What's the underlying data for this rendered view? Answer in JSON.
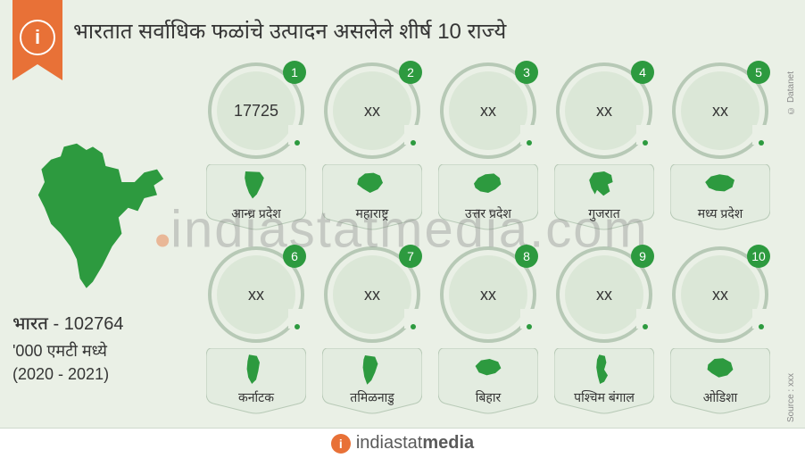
{
  "colors": {
    "bg": "#eaf0e6",
    "accent": "#e87137",
    "green": "#2d9a3f",
    "text": "#353535",
    "ring_border": "#b7c9b6",
    "ring_inner": "#dbe7d7",
    "shelf_fill": "#e3ece0",
    "shelf_stroke": "#b7c9b6",
    "footer_bg": "#ffffff",
    "footer_text": "#5a5a5a",
    "footer_divider": "#cfd9cd",
    "watermark": "rgba(130,130,130,0.35)",
    "meta_text": "#8a8a8a"
  },
  "header": {
    "title": "भारतात सर्वाधिक फळांचे उत्पादन असलेले शीर्ष 10 राज्ये"
  },
  "sidebar": {
    "country_label": "भारत",
    "total_value": "102764",
    "unit": "'000 एमटी मध्ये",
    "period": "(2020 - 2021)"
  },
  "states": [
    {
      "rank": 1,
      "name": "आन्ध्र प्रदेश",
      "value": "17725",
      "shape": "andhra"
    },
    {
      "rank": 2,
      "name": "महाराष्ट्र",
      "value": "xx",
      "shape": "maharashtra"
    },
    {
      "rank": 3,
      "name": "उत्तर प्रदेश",
      "value": "xx",
      "shape": "up"
    },
    {
      "rank": 4,
      "name": "गुजरात",
      "value": "xx",
      "shape": "gujarat"
    },
    {
      "rank": 5,
      "name": "मध्य प्रदेश",
      "value": "xx",
      "shape": "mp"
    },
    {
      "rank": 6,
      "name": "कर्नाटक",
      "value": "xx",
      "shape": "karnataka"
    },
    {
      "rank": 7,
      "name": "तमिळनाडु",
      "value": "xx",
      "shape": "tn"
    },
    {
      "rank": 8,
      "name": "बिहार",
      "value": "xx",
      "shape": "bihar"
    },
    {
      "rank": 9,
      "name": "पश्चिम बंगाल",
      "value": "xx",
      "shape": "wb"
    },
    {
      "rank": 10,
      "name": "ओडिशा",
      "value": "xx",
      "shape": "odisha"
    }
  ],
  "footer": {
    "brand_a": "indiastat",
    "brand_b": "media"
  },
  "watermark": {
    "text_a": "indiastatmedia",
    "text_b": ".com"
  },
  "meta": {
    "copyright": "© Datanet",
    "source": "Source : xxx"
  }
}
